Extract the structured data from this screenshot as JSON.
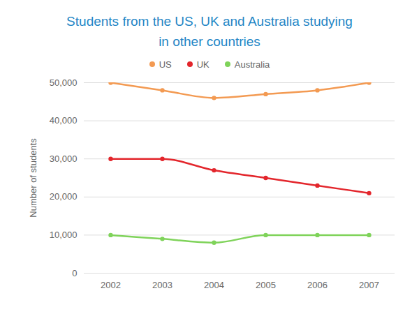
{
  "chart_data": {
    "type": "line",
    "title": "Students from the US, UK and Australia studying in other countries",
    "y_label": "Number of students",
    "categories": [
      "2002",
      "2003",
      "2004",
      "2005",
      "2006",
      "2007"
    ],
    "series": [
      {
        "name": "US",
        "color": "#f39a52",
        "values": [
          50000,
          48000,
          46000,
          47000,
          48000,
          50000
        ]
      },
      {
        "name": "UK",
        "color": "#e3262c",
        "values": [
          30000,
          30000,
          27000,
          25000,
          23000,
          21000
        ]
      },
      {
        "name": "Australia",
        "color": "#7fd35a",
        "values": [
          10000,
          9000,
          8000,
          10000,
          10000,
          10000
        ]
      }
    ],
    "ylim": [
      0,
      50000
    ],
    "yticks": [
      0,
      {
        "value": 10000,
        "label": "10,000"
      },
      {
        "value": 20000,
        "label": "20,000"
      },
      {
        "value": 30000,
        "label": "30,000"
      },
      {
        "value": 40000,
        "label": "40,000"
      },
      {
        "value": 50000,
        "label": "50,000"
      }
    ],
    "grid": true,
    "legend": "top",
    "marker": "circle",
    "line_style": "smooth"
  }
}
